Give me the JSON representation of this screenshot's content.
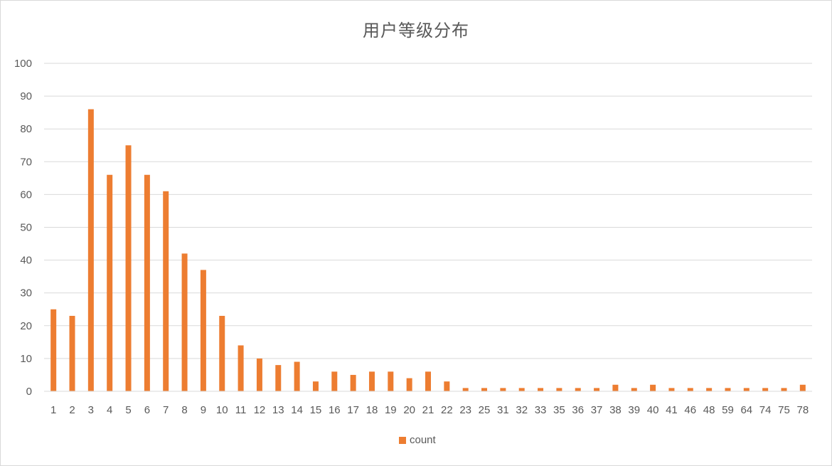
{
  "chart_data": {
    "type": "bar",
    "title": "用户等级分布",
    "xlabel": "",
    "ylabel": "",
    "ylim": [
      0,
      100
    ],
    "yticks": [
      0,
      10,
      20,
      30,
      40,
      50,
      60,
      70,
      80,
      90,
      100
    ],
    "grid": true,
    "legend_position": "bottom",
    "categories": [
      "1",
      "2",
      "3",
      "4",
      "5",
      "6",
      "7",
      "8",
      "9",
      "10",
      "11",
      "12",
      "13",
      "14",
      "15",
      "16",
      "17",
      "18",
      "19",
      "20",
      "21",
      "22",
      "23",
      "25",
      "31",
      "32",
      "33",
      "35",
      "36",
      "37",
      "38",
      "39",
      "40",
      "41",
      "46",
      "48",
      "59",
      "64",
      "74",
      "75",
      "78"
    ],
    "series": [
      {
        "name": "count",
        "color": "#ED7D31",
        "values": [
          25,
          23,
          86,
          66,
          75,
          66,
          61,
          42,
          37,
          23,
          14,
          10,
          8,
          9,
          3,
          6,
          5,
          6,
          6,
          4,
          6,
          3,
          1,
          1,
          1,
          1,
          1,
          1,
          1,
          1,
          2,
          1,
          2,
          1,
          1,
          1,
          1,
          1,
          1,
          1,
          2
        ]
      }
    ]
  }
}
